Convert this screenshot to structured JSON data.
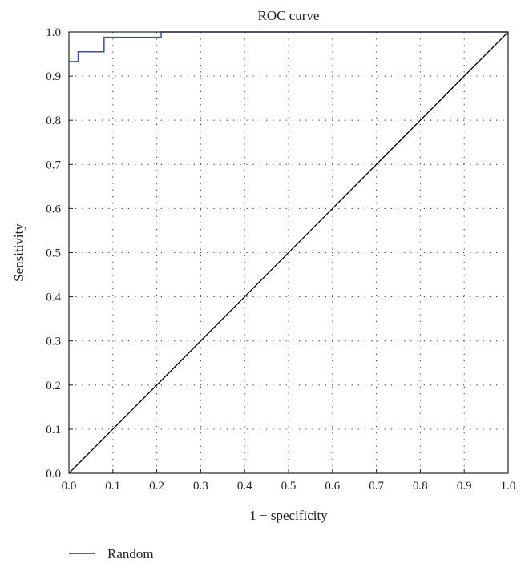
{
  "chart_data": {
    "type": "line",
    "title": "ROC curve",
    "xlabel": "1 − specificity",
    "ylabel": "Sensitivity",
    "xlim": [
      0,
      1
    ],
    "ylim": [
      0,
      1
    ],
    "xticks": [
      "0.0",
      "0.1",
      "0.2",
      "0.3",
      "0.4",
      "0.5",
      "0.6",
      "0.7",
      "0.8",
      "0.9",
      "1.0"
    ],
    "yticks": [
      "0.0",
      "0.1",
      "0.2",
      "0.3",
      "0.4",
      "0.5",
      "0.6",
      "0.7",
      "0.8",
      "0.9",
      "1.0"
    ],
    "grid": true,
    "grid_style": "dotted",
    "legend_position": "bottom-left",
    "series": [
      {
        "color": "#3a4bb0",
        "step": true,
        "points": [
          [
            0.0,
            0.933
          ],
          [
            0.021,
            0.933
          ],
          [
            0.021,
            0.955
          ],
          [
            0.08,
            0.955
          ],
          [
            0.08,
            0.988
          ],
          [
            0.21,
            0.988
          ],
          [
            0.21,
            1.0
          ],
          [
            1.0,
            1.0
          ]
        ]
      },
      {
        "name": "Random",
        "color": "#000000",
        "points": [
          [
            0.0,
            0.0
          ],
          [
            1.0,
            1.0
          ]
        ]
      }
    ]
  }
}
